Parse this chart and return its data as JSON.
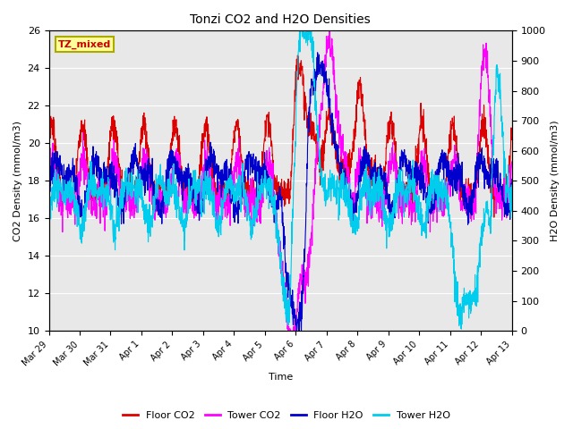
{
  "title": "Tonzi CO2 and H2O Densities",
  "xlabel": "Time",
  "ylabel_left": "CO2 Density (mmol/m3)",
  "ylabel_right": "H2O Density (mmol/m3)",
  "annotation": "TZ_mixed",
  "annotation_color": "#cc0000",
  "annotation_bg": "#ffff99",
  "annotation_border": "#aaaa00",
  "ylim_left": [
    10,
    26
  ],
  "ylim_right": [
    0,
    1000
  ],
  "bg_color": "#e8e8e8",
  "line_colors": {
    "floor_co2": "#dd0000",
    "tower_co2": "#ff00ff",
    "floor_h2o": "#0000cc",
    "tower_h2o": "#00ccee"
  },
  "legend_labels": [
    "Floor CO2",
    "Tower CO2",
    "Floor H2O",
    "Tower H2O"
  ],
  "xtick_labels": [
    "Mar 29",
    "Mar 30",
    "Mar 31",
    "Apr 1",
    "Apr 2",
    "Apr 3",
    "Apr 4",
    "Apr 5",
    "Apr 6",
    "Apr 7",
    "Apr 8",
    "Apr 9",
    "Apr 10",
    "Apr 11",
    "Apr 12",
    "Apr 13"
  ],
  "yticks_left": [
    10,
    12,
    14,
    16,
    18,
    20,
    22,
    24,
    26
  ],
  "yticks_right": [
    0,
    100,
    200,
    300,
    400,
    500,
    600,
    700,
    800,
    900,
    1000
  ]
}
